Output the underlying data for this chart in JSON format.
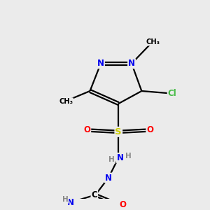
{
  "background_color": "#ebebeb",
  "bond_color": "#000000",
  "atom_colors": {
    "N": "#0000ee",
    "O": "#ff0000",
    "S": "#cccc00",
    "Cl": "#44bb44",
    "C": "#000000",
    "H": "#888888"
  },
  "figsize": [
    3.0,
    3.0
  ],
  "dpi": 100
}
